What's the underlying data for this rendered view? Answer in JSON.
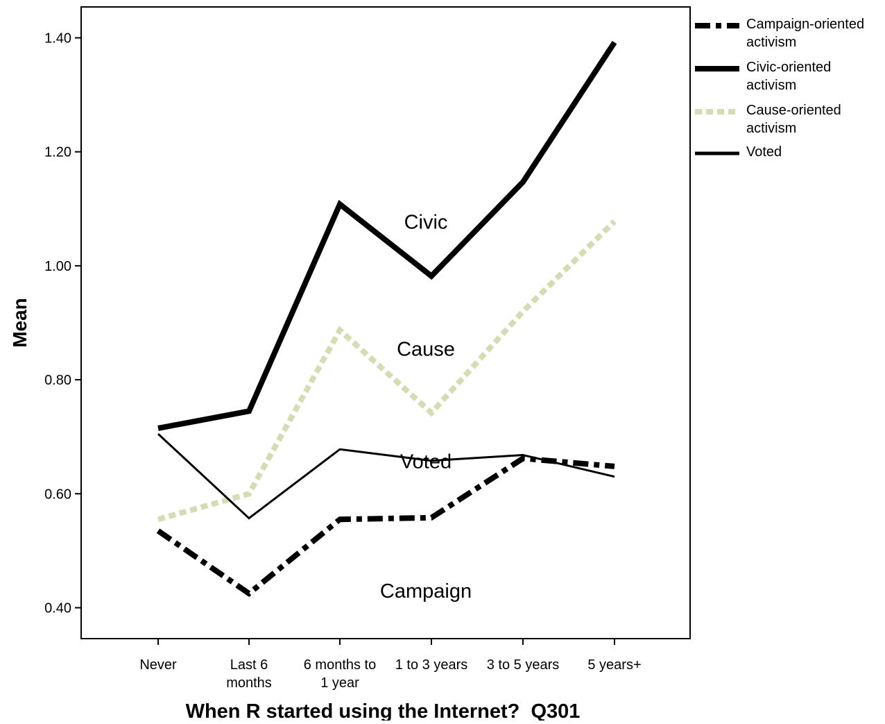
{
  "chart_data": {
    "type": "line",
    "title": "",
    "xlabel": "When R started using the Internet?  Q301",
    "ylabel": "Mean",
    "ylim": [
      0.37,
      1.48
    ],
    "yticks": [
      0.4,
      0.6,
      0.8,
      1.0,
      1.2,
      1.4
    ],
    "ytick_labels": [
      "0.40",
      "0.60",
      "0.80",
      "1.00",
      "1.20",
      "1.40"
    ],
    "categories": [
      [
        "Never"
      ],
      [
        "Last 6",
        "months"
      ],
      [
        "6 months to",
        "1 year"
      ],
      [
        "1 to 3 years"
      ],
      [
        "3 to 5 years"
      ],
      [
        "5 years+"
      ]
    ],
    "series": [
      {
        "name": "Campaign-oriented activism",
        "values": [
          0.535,
          0.425,
          0.555,
          0.558,
          0.662,
          0.648
        ],
        "color": "#000000",
        "style": "dashdot"
      },
      {
        "name": "Civic-oriented activism",
        "values": [
          0.715,
          0.745,
          1.108,
          0.982,
          1.147,
          1.392
        ],
        "color": "#000000",
        "style": "thick"
      },
      {
        "name": "Cause-oriented activism",
        "values": [
          0.555,
          0.6,
          0.887,
          0.742,
          0.92,
          1.078
        ],
        "color": "#d4dcb3",
        "style": "dotted"
      },
      {
        "name": "Voted",
        "values": [
          0.705,
          0.557,
          0.678,
          0.658,
          0.668,
          0.63
        ],
        "color": "#000000",
        "style": "thin"
      }
    ],
    "annotations": [
      {
        "text": "Civic",
        "x": 3,
        "y": 1.065
      },
      {
        "text": "Cause",
        "x": 3,
        "y": 0.842
      },
      {
        "text": "Voted",
        "x": 3,
        "y": 0.645
      },
      {
        "text": "Campaign",
        "x": 3,
        "y": 0.4175
      }
    ],
    "grid": false,
    "legend_position": "right"
  }
}
